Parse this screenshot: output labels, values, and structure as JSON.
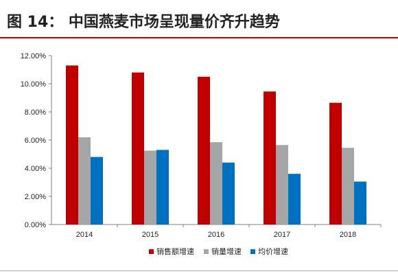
{
  "figure": {
    "title": "图 14：  中国燕麦市场呈现量价齐升趋势"
  },
  "colors": {
    "rule": "#c00000"
  },
  "chart_data": {
    "type": "bar",
    "categories": [
      "2014",
      "2015",
      "2016",
      "2017",
      "2018"
    ],
    "series": [
      {
        "name": "销售额增速",
        "color": "#c00000",
        "values": [
          11.3,
          10.8,
          10.5,
          9.45,
          8.65
        ]
      },
      {
        "name": "销量增速",
        "color": "#a6a6a6",
        "values": [
          6.2,
          5.25,
          5.85,
          5.65,
          5.45
        ]
      },
      {
        "name": "均价增速",
        "color": "#0070c0",
        "values": [
          4.8,
          5.3,
          4.4,
          3.6,
          3.05
        ]
      }
    ],
    "y_ticks": [
      "0.00%",
      "2.00%",
      "4.00%",
      "6.00%",
      "8.00%",
      "10.00%",
      "12.00%"
    ],
    "ylim": [
      0,
      12
    ],
    "grid": false,
    "legend_position": "bottom"
  }
}
